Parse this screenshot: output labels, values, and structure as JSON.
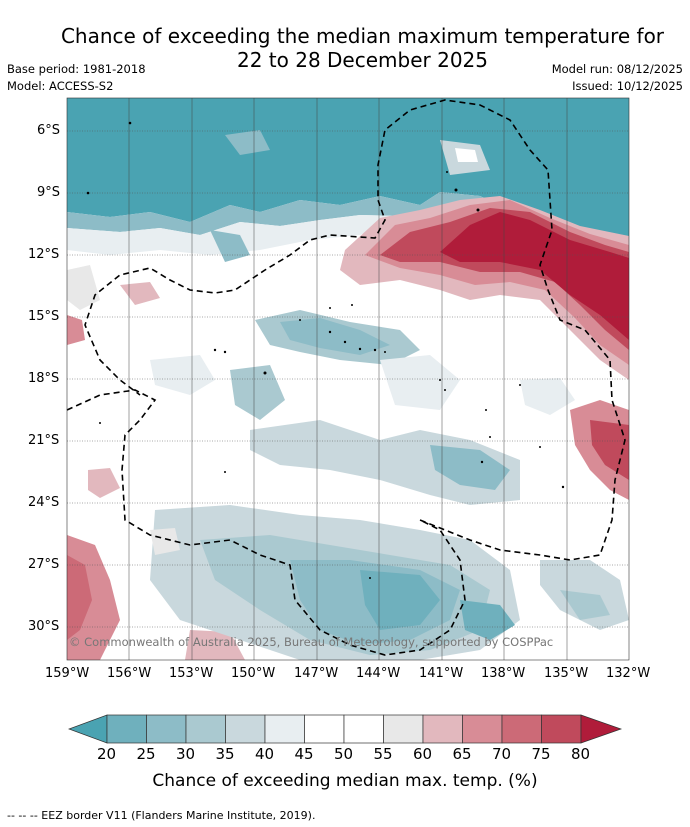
{
  "title": {
    "line1": "Chance of exceeding the median maximum temperature for",
    "line2": "22 to 28 December 2025"
  },
  "meta": {
    "base_period": "Base period: 1981-2018",
    "model": "Model: ACCESS-S2",
    "model_run": "Model run: 08/12/2025",
    "issued": "Issued: 10/12/2025"
  },
  "map": {
    "lat_ticks": [
      "6°S",
      "9°S",
      "12°S",
      "15°S",
      "18°S",
      "21°S",
      "24°S",
      "27°S",
      "30°S"
    ],
    "lon_ticks": [
      "159°W",
      "156°W",
      "153°W",
      "150°W",
      "147°W",
      "144°W",
      "141°W",
      "138°W",
      "135°W",
      "132°W"
    ],
    "lon_range": [
      -159,
      -132
    ],
    "lat_range": [
      -31.5,
      -4.5
    ],
    "copyright": "© Commonwealth of Australia 2025, Bureau of Meteorology, supported by COSPPac"
  },
  "colorbar": {
    "labels": [
      "20",
      "25",
      "30",
      "35",
      "40",
      "45",
      "50",
      "55",
      "60",
      "65",
      "70",
      "75",
      "80"
    ],
    "colors": [
      "#4aa3b2",
      "#6fb0bd",
      "#8dbcc7",
      "#aac9d0",
      "#c9d8dd",
      "#e8eef1",
      "#ffffff",
      "#ffffff",
      "#e8e8e8",
      "#e2b8be",
      "#d88c96",
      "#cc6a77",
      "#c04a5c",
      "#b01c3a"
    ],
    "title": "Chance of exceeding median max. temp. (%)"
  },
  "footnote": "--  --  -- EEZ border V11 (Flanders Marine Institute, 2019)."
}
